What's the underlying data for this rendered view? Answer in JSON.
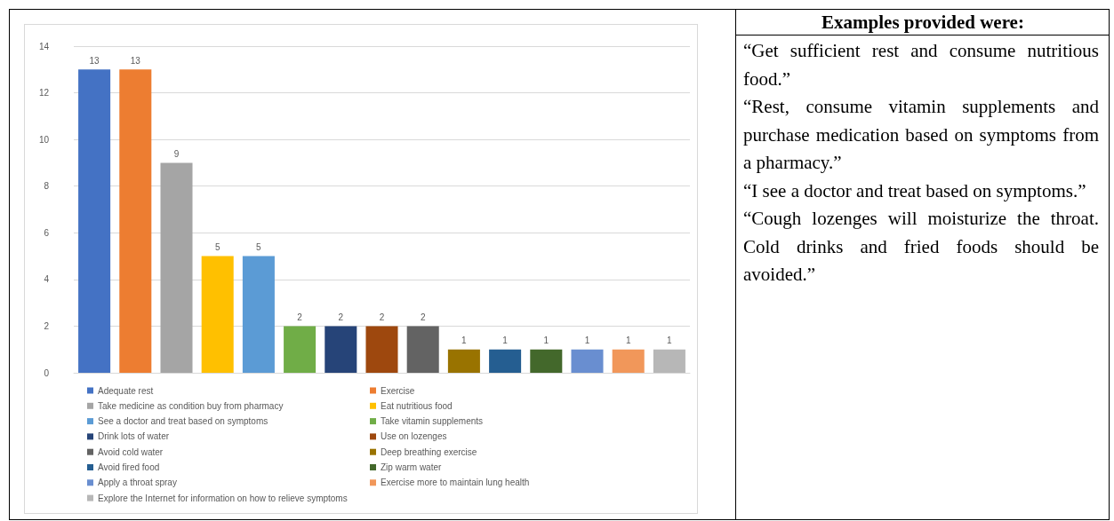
{
  "chart_data": {
    "type": "bar",
    "categories": [
      null,
      null,
      null,
      null,
      null,
      null,
      null,
      null,
      null,
      null,
      null,
      null,
      null,
      null,
      null
    ],
    "series": [
      {
        "name": "Adequate rest",
        "color": "#4472c4",
        "values": [
          13,
          null,
          null,
          null,
          null,
          null,
          null,
          null,
          null,
          null,
          null,
          null,
          null,
          null,
          null
        ]
      },
      {
        "name": "Exercise",
        "color": "#ed7d31",
        "values": [
          null,
          13,
          null,
          null,
          null,
          null,
          null,
          null,
          null,
          null,
          null,
          null,
          null,
          null,
          null
        ]
      },
      {
        "name": "Take medicine as condition buy from pharmacy",
        "color": "#a5a5a5",
        "values": [
          null,
          null,
          9,
          null,
          null,
          null,
          null,
          null,
          null,
          null,
          null,
          null,
          null,
          null,
          null
        ]
      },
      {
        "name": "Eat nutritious food",
        "color": "#ffc000",
        "values": [
          null,
          null,
          null,
          5,
          null,
          null,
          null,
          null,
          null,
          null,
          null,
          null,
          null,
          null,
          null
        ]
      },
      {
        "name": "See a doctor and treat based on symptoms",
        "color": "#5b9bd5",
        "values": [
          null,
          null,
          null,
          null,
          5,
          null,
          null,
          null,
          null,
          null,
          null,
          null,
          null,
          null,
          null
        ]
      },
      {
        "name": "Take vitamin supplements",
        "color": "#70ad47",
        "values": [
          null,
          null,
          null,
          null,
          null,
          2,
          null,
          null,
          null,
          null,
          null,
          null,
          null,
          null,
          null
        ]
      },
      {
        "name": "Drink lots of water",
        "color": "#264478",
        "values": [
          null,
          null,
          null,
          null,
          null,
          null,
          2,
          null,
          null,
          null,
          null,
          null,
          null,
          null,
          null
        ]
      },
      {
        "name": "Use on lozenges",
        "color": "#9e480e",
        "values": [
          null,
          null,
          null,
          null,
          null,
          null,
          null,
          2,
          null,
          null,
          null,
          null,
          null,
          null,
          null
        ]
      },
      {
        "name": "Avoid cold water",
        "color": "#636363",
        "values": [
          null,
          null,
          null,
          null,
          null,
          null,
          null,
          null,
          2,
          null,
          null,
          null,
          null,
          null,
          null
        ]
      },
      {
        "name": "Deep breathing exercise",
        "color": "#997300",
        "values": [
          null,
          null,
          null,
          null,
          null,
          null,
          null,
          null,
          null,
          1,
          null,
          null,
          null,
          null,
          null
        ]
      },
      {
        "name": "Avoid fired food",
        "color": "#255e91",
        "values": [
          null,
          null,
          null,
          null,
          null,
          null,
          null,
          null,
          null,
          null,
          1,
          null,
          null,
          null,
          null
        ]
      },
      {
        "name": "Zip warm water",
        "color": "#43682b",
        "values": [
          null,
          null,
          null,
          null,
          null,
          null,
          null,
          null,
          null,
          null,
          null,
          1,
          null,
          null,
          null
        ]
      },
      {
        "name": "Apply a throat spray",
        "color": "#698ed0",
        "values": [
          null,
          null,
          null,
          null,
          null,
          null,
          null,
          null,
          null,
          null,
          null,
          null,
          1,
          null,
          null
        ]
      },
      {
        "name": "Exercise more to maintain lung health",
        "color": "#f1975a",
        "values": [
          null,
          null,
          null,
          null,
          null,
          null,
          null,
          null,
          null,
          null,
          null,
          null,
          null,
          1,
          null
        ]
      },
      {
        "name": "Explore the Internet for information on how to relieve symptoms",
        "color": "#b7b7b7",
        "values": [
          null,
          null,
          null,
          null,
          null,
          null,
          null,
          null,
          null,
          null,
          null,
          null,
          null,
          null,
          1
        ]
      }
    ],
    "ylim": [
      0,
      14
    ],
    "yticks": [
      0,
      2,
      4,
      6,
      8,
      10,
      12,
      14
    ],
    "grid": "y",
    "legend": "bottom",
    "data_labels": true,
    "annotations": [
      "Examples provided were:",
      "“Get sufficient rest and consume nutritious food.”",
      "“Rest, consume vitamin supplements and purchase medication based on symptoms from a pharmacy.”",
      "“I see a doctor and treat based on symptoms.”",
      "“Cough lozenges will moisturize the throat. Cold drinks and fried foods should be avoided.”"
    ]
  }
}
